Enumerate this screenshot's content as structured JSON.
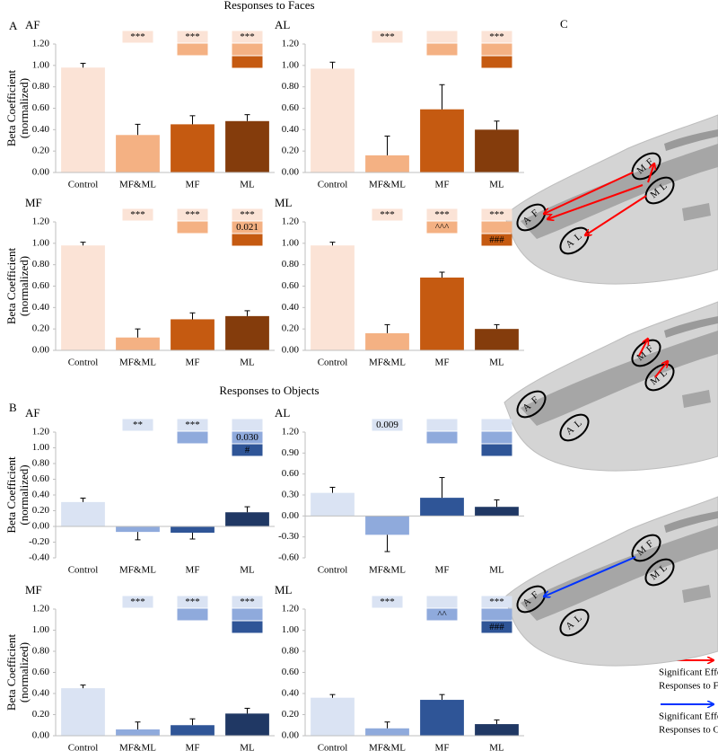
{
  "section_titles": [
    "Responses to Faces",
    "Responses to Objects"
  ],
  "panel_labels": [
    "A",
    "B",
    "C"
  ],
  "ellipse_labels": [
    [
      "M",
      "F"
    ],
    [
      "M",
      "L"
    ],
    [
      "A",
      "F"
    ],
    [
      "A",
      "L"
    ]
  ],
  "legend": [
    {
      "lines": [
        "Significant Effects on",
        "Responses to Faces"
      ]
    },
    {
      "lines": [
        "Significant Effects on",
        "Responses to Objects"
      ]
    }
  ],
  "chart_data": [
    {
      "type": "bar",
      "title": "AF",
      "ylabel": [
        "Beta Coefficient",
        "(normalized)"
      ],
      "categories": [
        "Control",
        "MF&ML",
        "MF",
        "ML"
      ],
      "values": [
        0.98,
        0.35,
        0.45,
        0.48
      ],
      "errors": [
        0.04,
        0.1,
        0.08,
        0.06
      ],
      "colors": [
        "#fbe3d6",
        "#f4b183",
        "#c55a11",
        "#843c0c"
      ],
      "ylim": [
        0,
        1.2
      ],
      "yticks": [
        {
          "value": 0,
          "label": "0.00"
        },
        {
          "value": 0.2,
          "label": "0.20"
        },
        {
          "value": 0.4,
          "label": "0.40"
        },
        {
          "value": 0.6,
          "label": "0.60"
        },
        {
          "value": 0.8,
          "label": "0.80"
        },
        {
          "value": 1,
          "label": "1.00"
        },
        {
          "value": 1.2,
          "label": "1.20"
        }
      ],
      "annotations": [
        [],
        [
          "***"
        ],
        [
          "***",
          null
        ],
        [
          "***",
          null,
          null
        ]
      ]
    },
    {
      "type": "bar",
      "title": "AL",
      "categories": [
        "Control",
        "MF&ML",
        "MF",
        "ML"
      ],
      "values": [
        0.97,
        0.16,
        0.59,
        0.4
      ],
      "errors": [
        0.06,
        0.18,
        0.23,
        0.08
      ],
      "colors": [
        "#fbe3d6",
        "#f4b183",
        "#c55a11",
        "#843c0c"
      ],
      "ylim": [
        0,
        1.2
      ],
      "yticks": [
        {
          "value": 0,
          "label": "0.00"
        },
        {
          "value": 0.2,
          "label": "0.20"
        },
        {
          "value": 0.4,
          "label": "0.40"
        },
        {
          "value": 0.6,
          "label": "0.60"
        },
        {
          "value": 0.8,
          "label": "0.80"
        },
        {
          "value": 1,
          "label": "1.00"
        },
        {
          "value": 1.2,
          "label": "1.20"
        }
      ],
      "annotations": [
        [],
        [
          "***"
        ],
        [
          null,
          null
        ],
        [
          "***",
          null,
          null
        ]
      ]
    },
    {
      "type": "bar",
      "title": "MF",
      "ylabel": [
        "Beta Coefficient",
        "(normalized)"
      ],
      "categories": [
        "Control",
        "MF&ML",
        "MF",
        "ML"
      ],
      "values": [
        0.98,
        0.12,
        0.29,
        0.32
      ],
      "errors": [
        0.03,
        0.08,
        0.06,
        0.05
      ],
      "colors": [
        "#fbe3d6",
        "#f4b183",
        "#c55a11",
        "#843c0c"
      ],
      "ylim": [
        0,
        1.2
      ],
      "yticks": [
        {
          "value": 0,
          "label": "0.00"
        },
        {
          "value": 0.2,
          "label": "0.20"
        },
        {
          "value": 0.4,
          "label": "0.40"
        },
        {
          "value": 0.6,
          "label": "0.60"
        },
        {
          "value": 0.8,
          "label": "0.80"
        },
        {
          "value": 1,
          "label": "1.00"
        },
        {
          "value": 1.2,
          "label": "1.20"
        }
      ],
      "annotations": [
        [],
        [
          "***"
        ],
        [
          "***",
          null
        ],
        [
          "***",
          "0.021",
          null
        ]
      ]
    },
    {
      "type": "bar",
      "title": "ML",
      "categories": [
        "Control",
        "MF&ML",
        "MF",
        "ML"
      ],
      "values": [
        0.98,
        0.16,
        0.68,
        0.2
      ],
      "errors": [
        0.03,
        0.08,
        0.05,
        0.04
      ],
      "colors": [
        "#fbe3d6",
        "#f4b183",
        "#c55a11",
        "#843c0c"
      ],
      "ylim": [
        0,
        1.2
      ],
      "yticks": [
        {
          "value": 0,
          "label": "0.00"
        },
        {
          "value": 0.2,
          "label": "0.20"
        },
        {
          "value": 0.4,
          "label": "0.40"
        },
        {
          "value": 0.6,
          "label": "0.60"
        },
        {
          "value": 0.8,
          "label": "0.80"
        },
        {
          "value": 1,
          "label": "1.00"
        },
        {
          "value": 1.2,
          "label": "1.20"
        }
      ],
      "annotations": [
        [],
        [
          "***"
        ],
        [
          "***",
          "^^^"
        ],
        [
          "***",
          null,
          "###"
        ]
      ]
    },
    {
      "type": "bar",
      "title": "AF",
      "ylabel": [
        "Beta Coefficient",
        "(normalized)"
      ],
      "categories": [
        "Control",
        "MF&ML",
        "MF",
        "ML"
      ],
      "values": [
        0.31,
        -0.07,
        -0.08,
        0.18
      ],
      "errors": [
        0.05,
        0.1,
        0.08,
        0.07
      ],
      "colors": [
        "#dae3f3",
        "#8faadc",
        "#2f5597",
        "#203864"
      ],
      "ylim": [
        -0.4,
        1.2
      ],
      "yticks": [
        {
          "value": -0.4,
          "label": "-0.40"
        },
        {
          "value": -0.2,
          "label": "-0.20"
        },
        {
          "value": 0,
          "label": "0.00"
        },
        {
          "value": 0.2,
          "label": "0.20"
        },
        {
          "value": 0.4,
          "label": "0.40"
        },
        {
          "value": 0.6,
          "label": "0.60"
        },
        {
          "value": 0.8,
          "label": "0.80"
        },
        {
          "value": 1,
          "label": "1.00"
        },
        {
          "value": 1.2,
          "label": "1.20"
        }
      ],
      "annotations": [
        [],
        [
          "**"
        ],
        [
          "***",
          null
        ],
        [
          null,
          "0.030",
          "#"
        ]
      ]
    },
    {
      "type": "bar",
      "title": "AL",
      "categories": [
        "Control",
        "MF&ML",
        "MF",
        "ML"
      ],
      "values": [
        0.33,
        -0.27,
        0.26,
        0.13
      ],
      "errors": [
        0.08,
        0.24,
        0.29,
        0.1
      ],
      "colors": [
        "#dae3f3",
        "#8faadc",
        "#2f5597",
        "#203864"
      ],
      "ylim": [
        -0.6,
        1.2
      ],
      "yticks": [
        {
          "value": -0.6,
          "label": "-0.60"
        },
        {
          "value": -0.3,
          "label": "-0.30"
        },
        {
          "value": 0,
          "label": "0.00"
        },
        {
          "value": 0.3,
          "label": "0.30"
        },
        {
          "value": 0.6,
          "label": "0.60"
        },
        {
          "value": 0.9,
          "label": "0.90"
        },
        {
          "value": 1.2,
          "label": "1.20"
        }
      ],
      "annotations": [
        [],
        [
          "0.009"
        ],
        [
          null,
          null
        ],
        [
          null,
          null,
          null
        ]
      ]
    },
    {
      "type": "bar",
      "title": "MF",
      "ylabel": [
        "Beta Coefficient",
        "(normalized)"
      ],
      "categories": [
        "Control",
        "MF&ML",
        "MF",
        "ML"
      ],
      "values": [
        0.45,
        0.06,
        0.1,
        0.21
      ],
      "errors": [
        0.03,
        0.07,
        0.06,
        0.05
      ],
      "colors": [
        "#dae3f3",
        "#8faadc",
        "#2f5597",
        "#203864"
      ],
      "ylim": [
        0,
        1.2
      ],
      "yticks": [
        {
          "value": 0,
          "label": "0.00"
        },
        {
          "value": 0.2,
          "label": "0.20"
        },
        {
          "value": 0.4,
          "label": "0.40"
        },
        {
          "value": 0.6,
          "label": "0.60"
        },
        {
          "value": 0.8,
          "label": "0.80"
        },
        {
          "value": 1,
          "label": "1.00"
        },
        {
          "value": 1.2,
          "label": "1.20"
        }
      ],
      "annotations": [
        [],
        [
          "***"
        ],
        [
          "***",
          null
        ],
        [
          "***",
          null,
          null
        ]
      ]
    },
    {
      "type": "bar",
      "title": "ML",
      "categories": [
        "Control",
        "MF&ML",
        "MF",
        "ML"
      ],
      "values": [
        0.36,
        0.07,
        0.34,
        0.11
      ],
      "errors": [
        0.03,
        0.06,
        0.05,
        0.04
      ],
      "colors": [
        "#dae3f3",
        "#8faadc",
        "#2f5597",
        "#203864"
      ],
      "ylim": [
        0,
        1.2
      ],
      "yticks": [
        {
          "value": 0,
          "label": "0.00"
        },
        {
          "value": 0.2,
          "label": "0.20"
        },
        {
          "value": 0.4,
          "label": "0.40"
        },
        {
          "value": 0.6,
          "label": "0.60"
        },
        {
          "value": 0.8,
          "label": "0.80"
        },
        {
          "value": 1,
          "label": "1.00"
        },
        {
          "value": 1.2,
          "label": "1.20"
        }
      ],
      "annotations": [
        [],
        [
          "***"
        ],
        [
          null,
          "^^"
        ],
        [
          "***",
          null,
          "###"
        ]
      ]
    }
  ]
}
